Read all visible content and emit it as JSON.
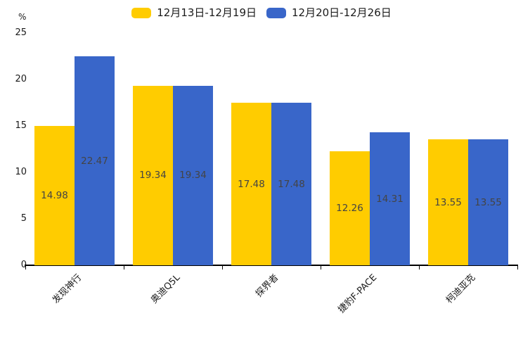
{
  "chart_data": {
    "type": "bar",
    "title": "",
    "y_unit": "%",
    "categories": [
      "发现神行",
      "奥迪Q5L",
      "探界者",
      "捷豹F-PACE",
      "柯迪亚克"
    ],
    "series": [
      {
        "name": "12月13日-12月19日",
        "color": "#FFCC00",
        "values": [
          14.98,
          19.34,
          17.48,
          12.26,
          13.55
        ]
      },
      {
        "name": "12月20日-12月26日",
        "color": "#3966C9",
        "values": [
          22.47,
          19.34,
          17.48,
          14.31,
          13.55
        ]
      }
    ],
    "ylim": [
      0,
      25
    ],
    "y_ticks": [
      0,
      5,
      10,
      15,
      20,
      25
    ],
    "grid": false,
    "legend_position": "top-center",
    "value_label_position": "inside-center",
    "x_label_rotation": 45
  }
}
